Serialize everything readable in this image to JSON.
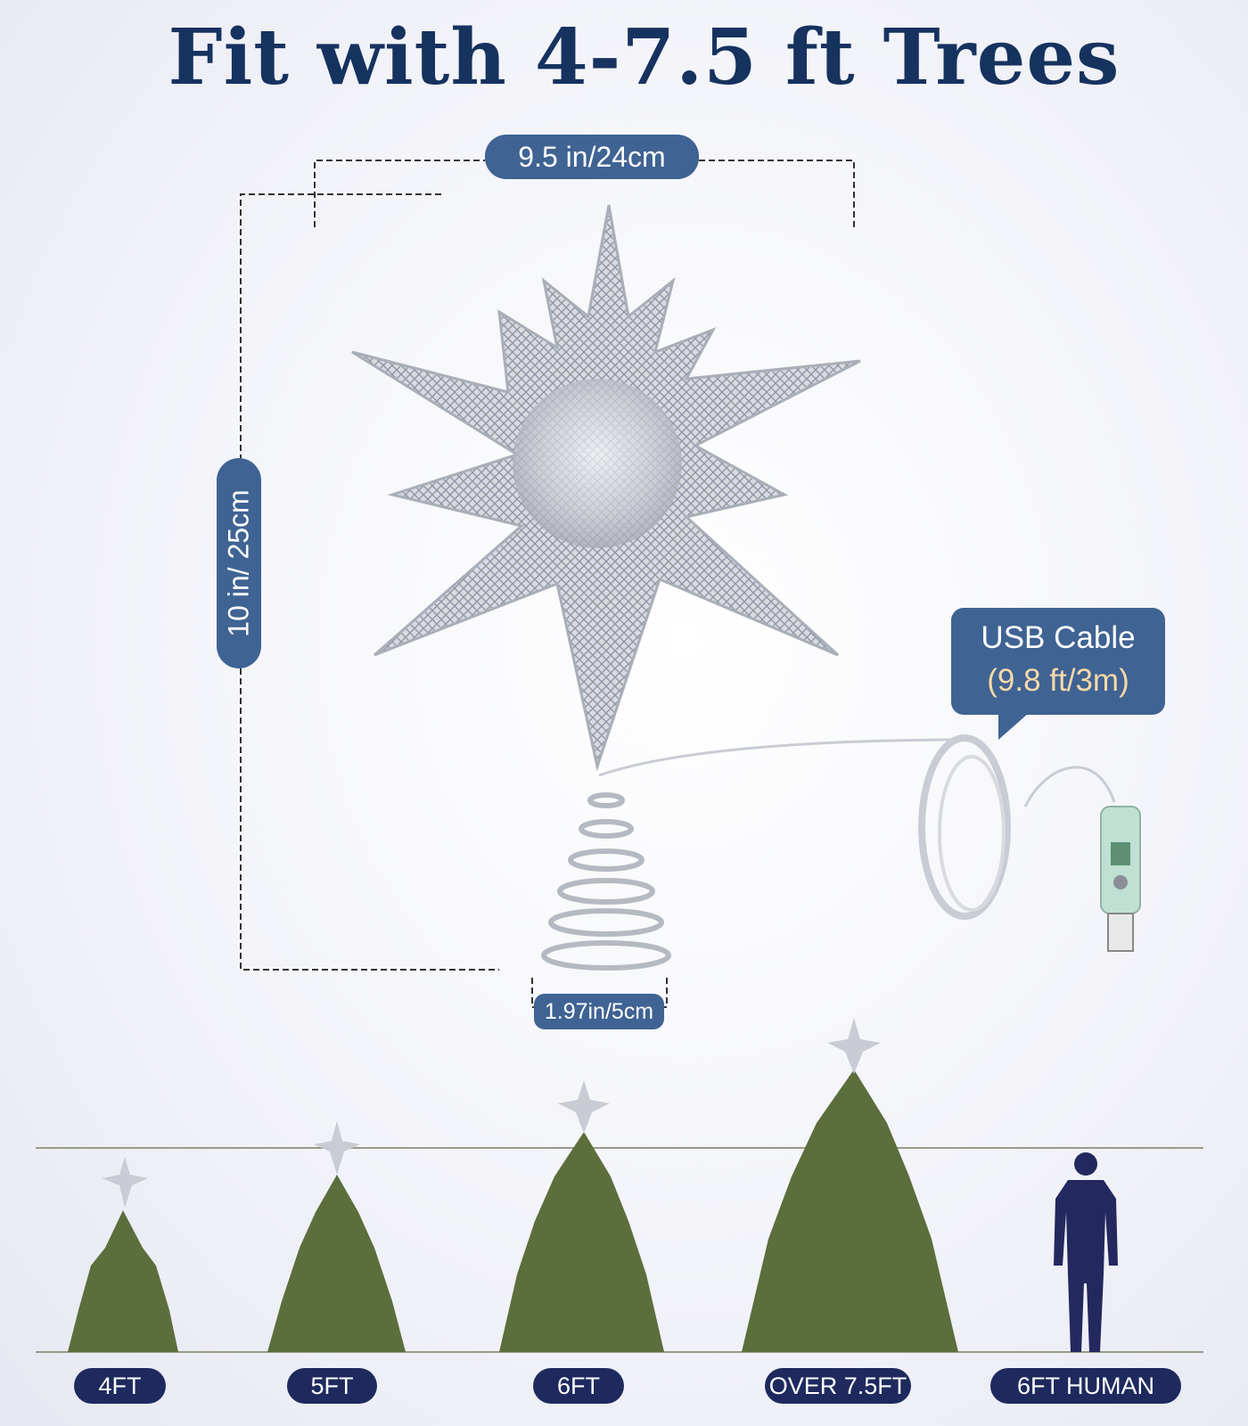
{
  "title": "Fit with 4-7.5 ft Trees",
  "dimensions": {
    "width_label": "9.5 in/24cm",
    "height_label": "10 in/ 25cm",
    "base_label": "1.97in/5cm"
  },
  "callout": {
    "line1": "USB Cable",
    "line2": "(9.8 ft/3m)"
  },
  "tree_sizes": [
    {
      "label": "4FT"
    },
    {
      "label": "5FT"
    },
    {
      "label": "6FT"
    },
    {
      "label": "OVER 7.5FT"
    },
    {
      "label": "6FT HUMAN"
    }
  ],
  "colors": {
    "title": "#16325f",
    "pill": "#3f6393",
    "label_pill": "#1e2a5e",
    "tree": "#5c6e3c",
    "human": "#23285e",
    "silver": "#c9ccd4"
  }
}
